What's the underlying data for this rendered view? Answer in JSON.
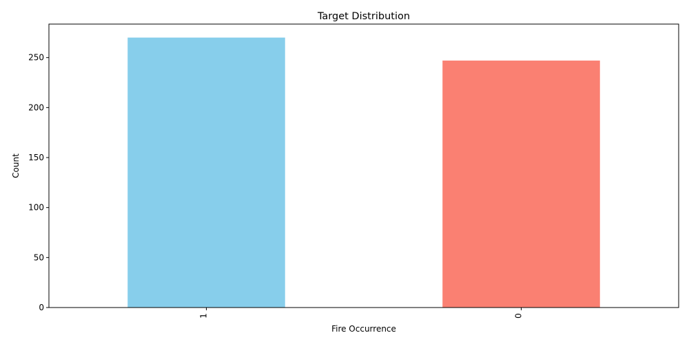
{
  "chart_data": {
    "type": "bar",
    "title": "Target Distribution",
    "xlabel": "Fire Occurrence",
    "ylabel": "Count",
    "categories": [
      "1",
      "0"
    ],
    "values": [
      270,
      247
    ],
    "colors": [
      "#87CEEB",
      "#FA8072"
    ],
    "ylim": [
      0,
      283.5
    ],
    "yticks": [
      0,
      50,
      100,
      150,
      200,
      250
    ],
    "grid": false,
    "legend": false
  }
}
